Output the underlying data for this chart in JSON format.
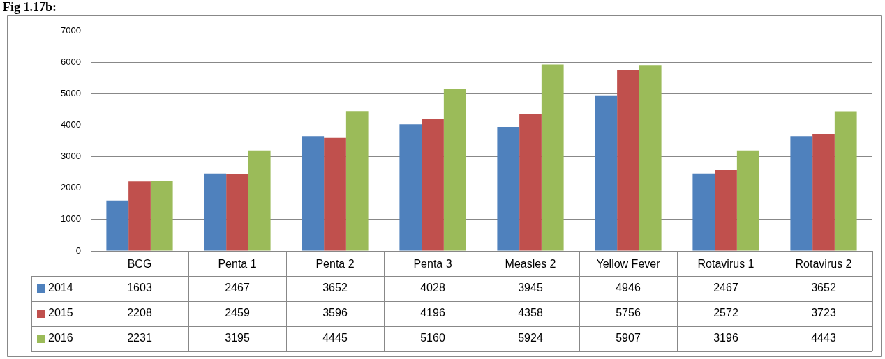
{
  "chart_data": {
    "type": "bar",
    "title": "Fig 1.17b:",
    "categories": [
      "BCG",
      "Penta 1",
      "Penta 2",
      "Penta 3",
      "Measles 2",
      "Yellow Fever",
      "Rotavirus 1",
      "Rotavirus 2"
    ],
    "series": [
      {
        "name": "2014",
        "color": "#4f81bd",
        "values": [
          1603,
          2467,
          3652,
          4028,
          3945,
          4946,
          2467,
          3652
        ]
      },
      {
        "name": "2015",
        "color": "#c0504d",
        "values": [
          2208,
          2459,
          3596,
          4196,
          4358,
          5756,
          2572,
          3723
        ]
      },
      {
        "name": "2016",
        "color": "#9bbb59",
        "values": [
          2231,
          3195,
          4445,
          5160,
          5924,
          5907,
          3196,
          4443
        ]
      }
    ],
    "ylim": [
      0,
      7000
    ],
    "yticks": [
      0,
      1000,
      2000,
      3000,
      4000,
      5000,
      6000,
      7000
    ],
    "grid": "y",
    "data_labels": true,
    "legend": "bottom"
  }
}
